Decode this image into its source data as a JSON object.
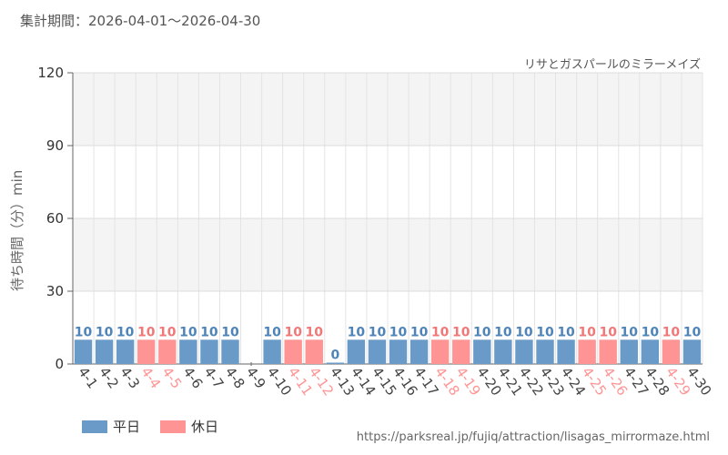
{
  "header": {
    "period": "集計期間：2026-04-01〜2026-04-30"
  },
  "footer": {
    "source": "https://parksreal.jp/fujiq/attraction/lisagas_mirrormaze.html"
  },
  "colors": {
    "weekday": "#6a9bc8",
    "holiday": "#ff9494",
    "weekday_label": "#4f84b8",
    "holiday_label": "#f07878"
  },
  "chart_data": {
    "type": "bar",
    "title": "リサとガスパールのミラーメイズ",
    "ylabel": "待ち時間（分）min",
    "xlabel": "",
    "ylim": [
      0,
      120
    ],
    "yticks": [
      0,
      30,
      60,
      90,
      120
    ],
    "grid": true,
    "legend_position": "bottom-left",
    "legend": [
      {
        "key": "weekday",
        "label": "平日"
      },
      {
        "key": "holiday",
        "label": "休日"
      }
    ],
    "categories": [
      "4-1",
      "4-2",
      "4-3",
      "4-4",
      "4-5",
      "4-6",
      "4-7",
      "4-8",
      "4-9",
      "4-10",
      "4-11",
      "4-12",
      "4-13",
      "4-14",
      "4-15",
      "4-16",
      "4-17",
      "4-18",
      "4-19",
      "4-20",
      "4-21",
      "4-22",
      "4-23",
      "4-24",
      "4-25",
      "4-26",
      "4-27",
      "4-28",
      "4-29",
      "4-30"
    ],
    "values": [
      10,
      10,
      10,
      10,
      10,
      10,
      10,
      10,
      null,
      10,
      10,
      10,
      0,
      10,
      10,
      10,
      10,
      10,
      10,
      10,
      10,
      10,
      10,
      10,
      10,
      10,
      10,
      10,
      10,
      10
    ],
    "day_types": [
      "weekday",
      "weekday",
      "weekday",
      "holiday",
      "holiday",
      "weekday",
      "weekday",
      "weekday",
      "weekday",
      "weekday",
      "holiday",
      "holiday",
      "weekday",
      "weekday",
      "weekday",
      "weekday",
      "weekday",
      "holiday",
      "holiday",
      "weekday",
      "weekday",
      "weekday",
      "weekday",
      "weekday",
      "holiday",
      "holiday",
      "weekday",
      "weekday",
      "holiday",
      "weekday"
    ]
  }
}
